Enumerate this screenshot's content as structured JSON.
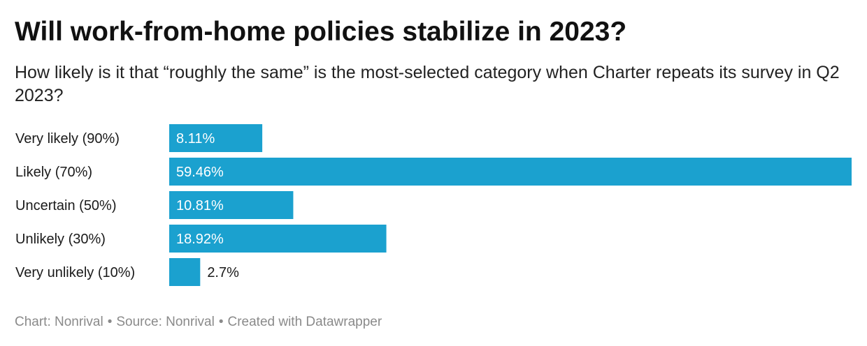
{
  "header": {
    "title": "Will work-from-home policies stabilize in 2023?",
    "subtitle": "How likely is it that “roughly the same” is the most-selected category when Charter repeats its survey in Q2 2023?"
  },
  "footer": {
    "chart_credit": "Chart: Nonrival",
    "source": "Source: Nonrival",
    "created_with": "Created with Datawrapper",
    "separator": "•"
  },
  "colors": {
    "bar": "#1ba1cf",
    "label_inside": "#ffffff",
    "label_outside": "#1a1a1a"
  },
  "chart_data": {
    "type": "bar",
    "orientation": "horizontal",
    "title": "Will work-from-home policies stabilize in 2023?",
    "subtitle": "How likely is it that “roughly the same” is the most-selected category when Charter repeats its survey in Q2 2023?",
    "categories": [
      "Very likely (90%)",
      "Likely (70%)",
      "Uncertain (50%)",
      "Unlikely (30%)",
      "Very unlikely (10%)"
    ],
    "values": [
      8.11,
      59.46,
      10.81,
      18.92,
      2.7
    ],
    "value_labels": [
      "8.11%",
      "59.46%",
      "10.81%",
      "18.92%",
      "2.7%"
    ],
    "xlim": [
      0,
      59.46
    ],
    "grid": false,
    "legend": "none"
  }
}
